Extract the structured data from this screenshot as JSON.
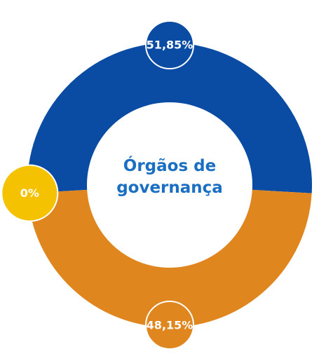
{
  "chart_data": {
    "type": "donut",
    "title": "Órgãos de governança",
    "categories": [
      null,
      null,
      null
    ],
    "values": [
      51.85,
      48.15,
      0
    ],
    "value_labels": [
      "51,85%",
      "48,15%",
      "0%"
    ],
    "colors": [
      "#0a4ca3",
      "#e0861f",
      "#f5c200"
    ]
  }
}
